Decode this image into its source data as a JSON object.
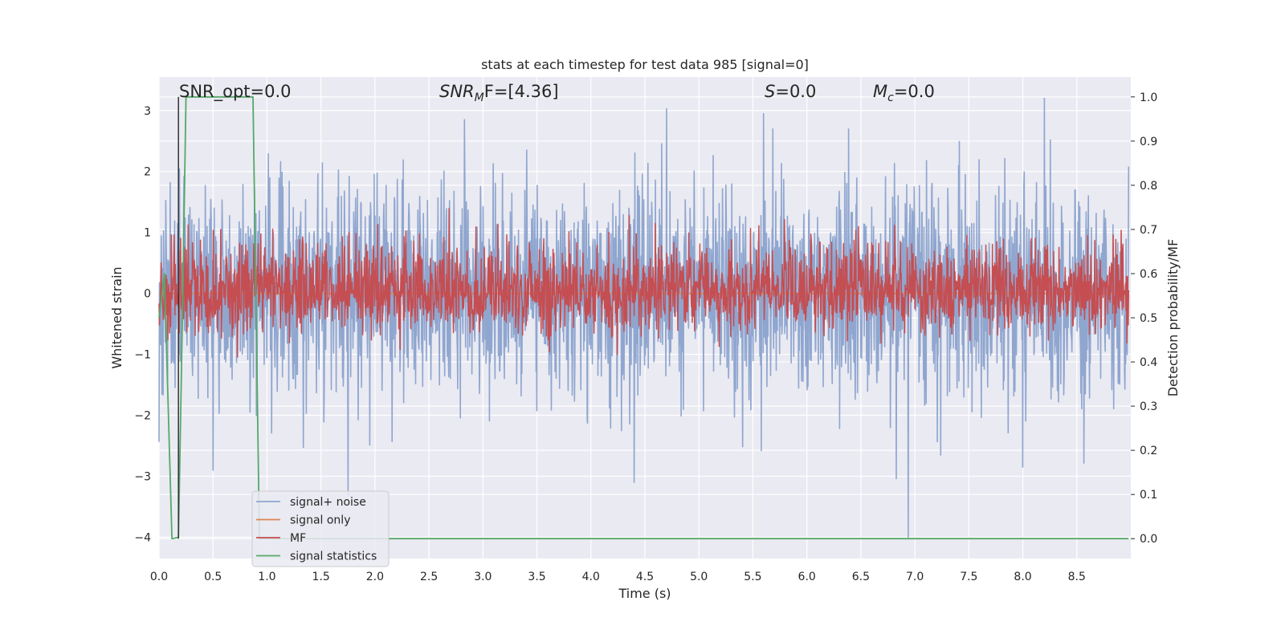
{
  "chart_data": {
    "type": "line",
    "title": "stats at each timestep for test data 985 [signal=0]",
    "xlabel": "Time (s)",
    "ylabel": "Whitened strain",
    "ylabel_right": "Detection probability/MF",
    "xlim": [
      0.0,
      9.0
    ],
    "ylim": [
      -4.35,
      3.55
    ],
    "ylim_right": [
      -0.045,
      1.045
    ],
    "x_ticks": [
      "0.0",
      "0.5",
      "1.0",
      "1.5",
      "2.0",
      "2.5",
      "3.0",
      "3.5",
      "4.0",
      "4.5",
      "5.0",
      "5.5",
      "6.0",
      "6.5",
      "7.0",
      "7.5",
      "8.0",
      "8.5"
    ],
    "x_tick_values": [
      0,
      0.5,
      1,
      1.5,
      2,
      2.5,
      3,
      3.5,
      4,
      4.5,
      5,
      5.5,
      6,
      6.5,
      7,
      7.5,
      8,
      8.5
    ],
    "y_ticks": [
      "3",
      "2",
      "1",
      "0",
      "−1",
      "−2",
      "−3",
      "−4"
    ],
    "y_tick_values": [
      3,
      2,
      1,
      0,
      -1,
      -2,
      -3,
      -4
    ],
    "y_right_ticks": [
      "1.0",
      "0.9",
      "0.8",
      "0.7",
      "0.6",
      "0.5",
      "0.4",
      "0.3",
      "0.2",
      "0.1",
      "0.0"
    ],
    "y_right_tick_values": [
      1.0,
      0.9,
      0.8,
      0.7,
      0.6,
      0.5,
      0.4,
      0.3,
      0.2,
      0.1,
      0.0
    ],
    "grid": true,
    "legend_placement": "lower-left",
    "annotations": {
      "snr_opt": "SNR_opt=0.0",
      "snr_mf_base": "SNR",
      "snr_mf_sub": "M",
      "snr_mf_rest": "F=[4.36]",
      "s_base": "S",
      "s_rest": "=0.0",
      "mc_base": "M",
      "mc_sub": "c",
      "mc_rest": "=0.0"
    },
    "marker_x": 0.18,
    "series": [
      {
        "name": "signal+ noise",
        "axis": "left",
        "color": "#8fa6cf",
        "style": "noise",
        "sigma": 0.85,
        "spikes": [
          [
            0.5,
            -2.9
          ],
          [
            1.75,
            -3.3
          ],
          [
            4.4,
            -3.1
          ],
          [
            5.6,
            2.95
          ],
          [
            6.94,
            -4.0
          ],
          [
            8.2,
            3.2
          ],
          [
            8.0,
            -2.85
          ]
        ],
        "t_end": 8.98
      },
      {
        "name": "signal only",
        "axis": "left",
        "color": "#dd8452",
        "points": [
          [
            0.0,
            0.0
          ],
          [
            8.98,
            0.0
          ]
        ]
      },
      {
        "name": "MF",
        "axis": "right",
        "color": "#c44e52",
        "style": "mf",
        "base": 0.56,
        "amp": 0.055,
        "spikes": [
          [
            0.57,
            0.7
          ],
          [
            4.42,
            0.69
          ],
          [
            0.2,
            0.68
          ]
        ],
        "t_end": 8.98
      },
      {
        "name": "signal statistics",
        "axis": "right",
        "color": "#55a868",
        "points": [
          [
            0.0,
            0.5
          ],
          [
            0.05,
            0.6
          ],
          [
            0.12,
            0.0
          ],
          [
            0.18,
            0.003
          ],
          [
            0.22,
            0.55
          ],
          [
            0.25,
            1.0
          ],
          [
            0.87,
            1.0
          ],
          [
            0.93,
            0.0
          ],
          [
            8.98,
            0.0
          ]
        ]
      }
    ]
  }
}
